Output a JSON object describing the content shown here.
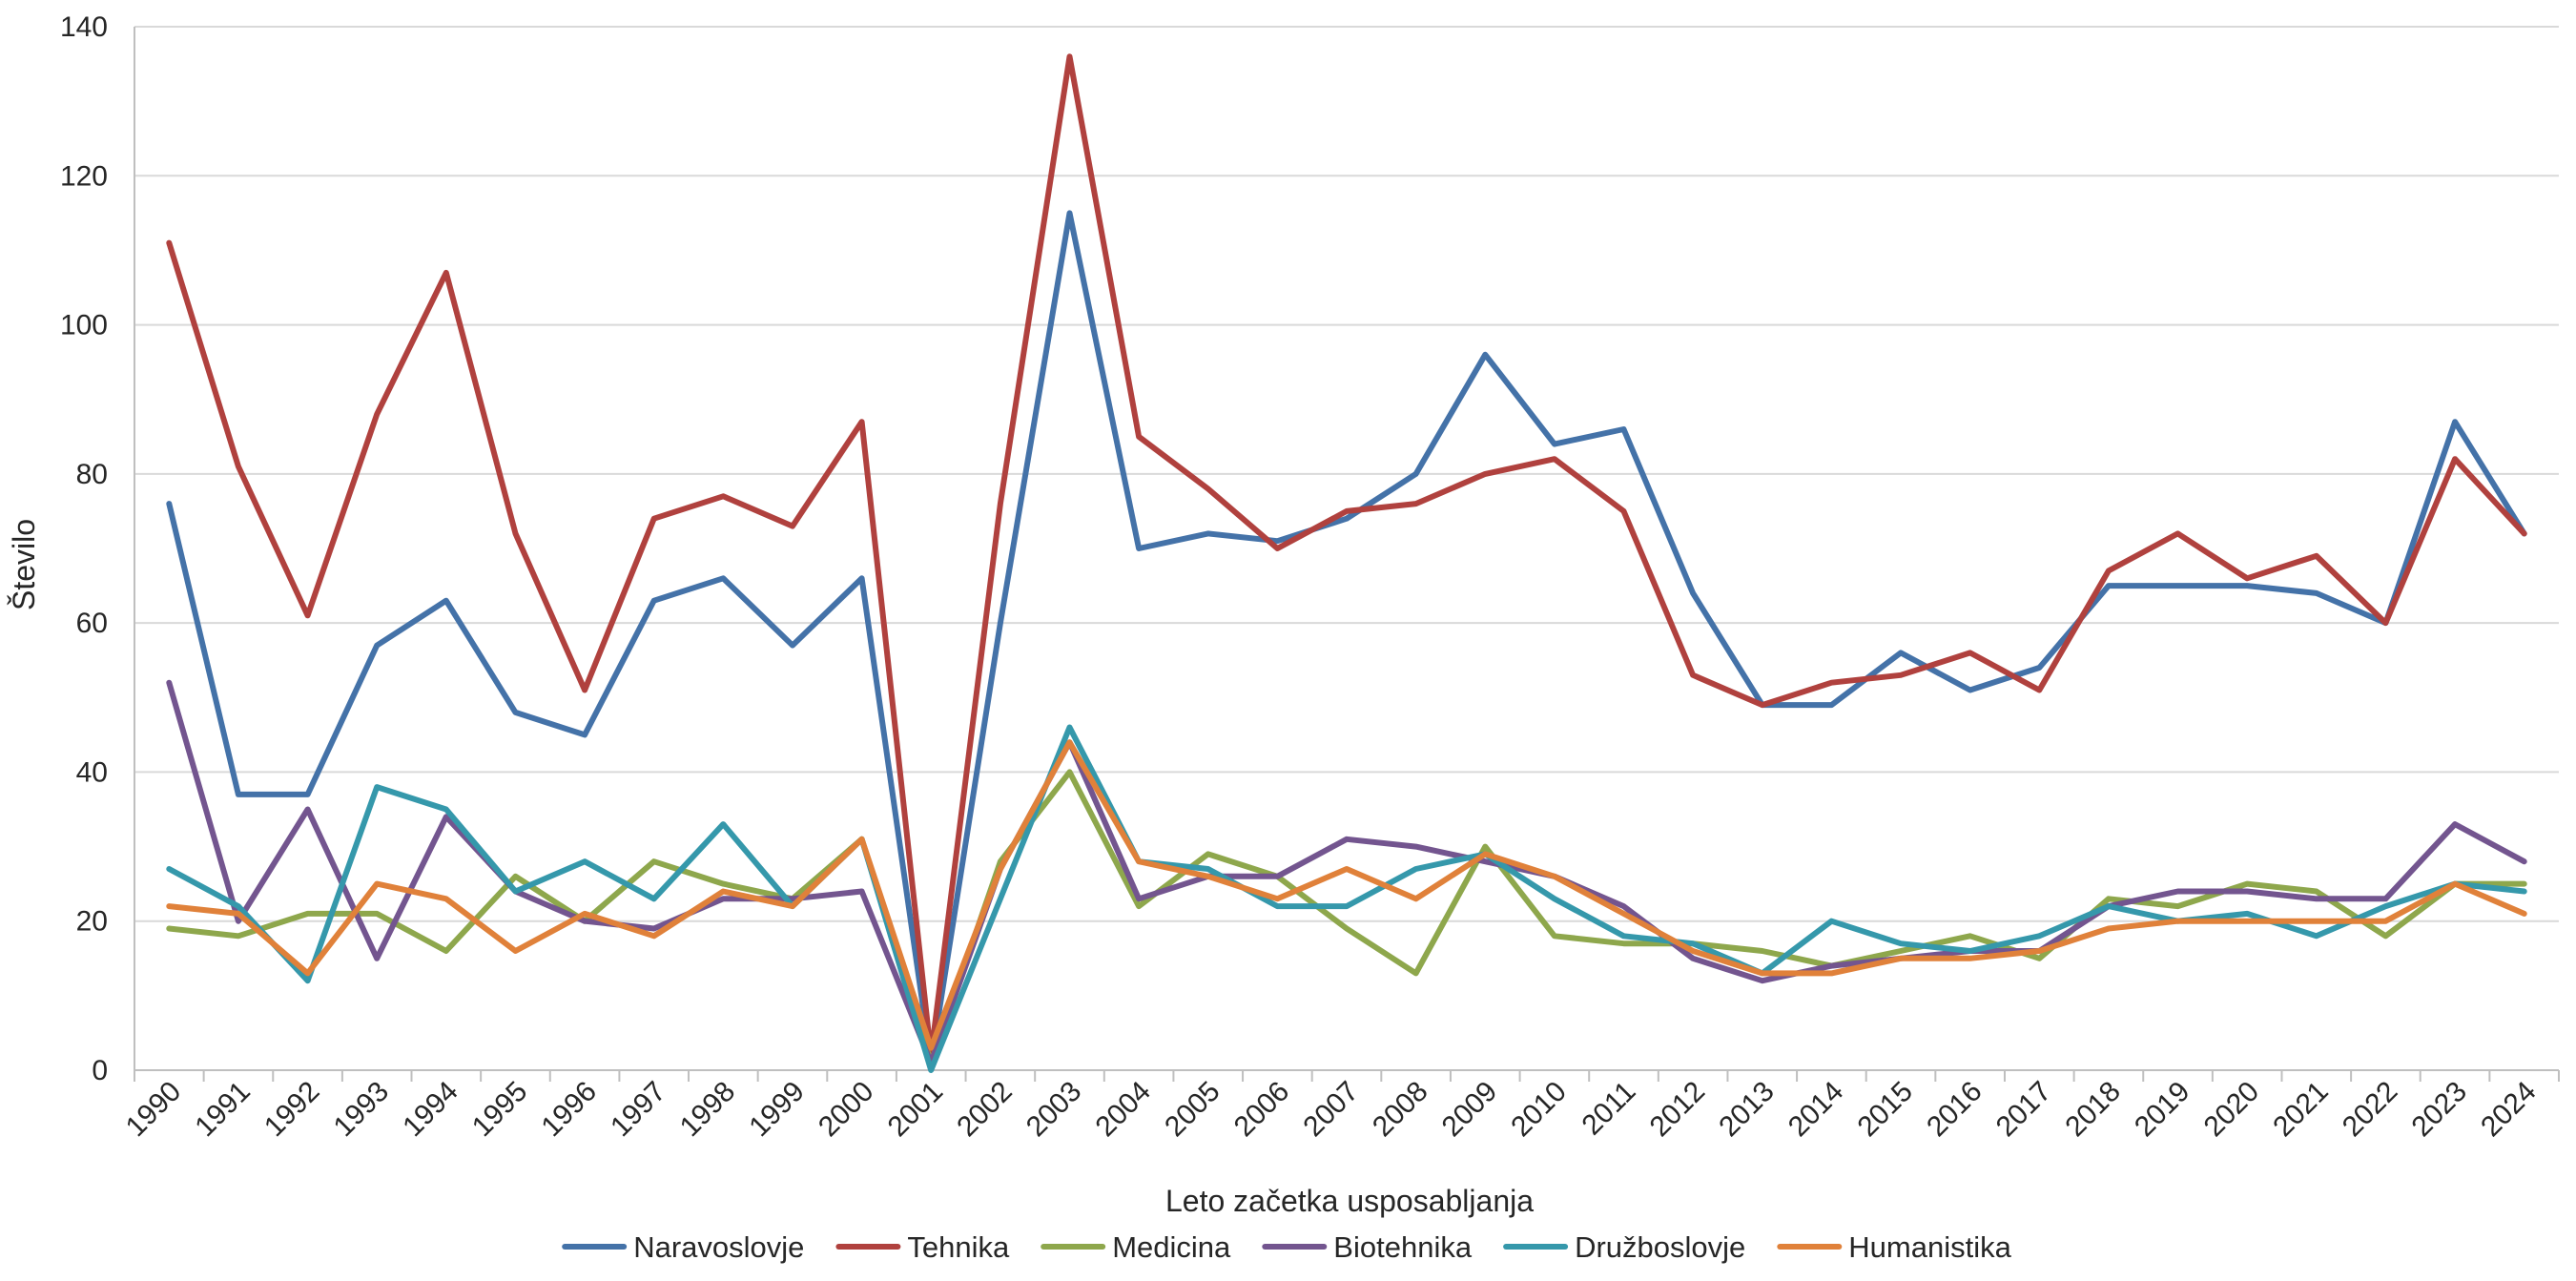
{
  "chart_data": {
    "type": "line",
    "xlabel": "Leto začetka usposabljanja",
    "ylabel": "Število",
    "ylim": [
      0,
      140
    ],
    "yticks": [
      0,
      20,
      40,
      60,
      80,
      100,
      120,
      140
    ],
    "grid": "horizontal",
    "legend_position": "bottom",
    "categories": [
      "1990",
      "1991",
      "1992",
      "1993",
      "1994",
      "1995",
      "1996",
      "1997",
      "1998",
      "1999",
      "2000",
      "2001",
      "2002",
      "2003",
      "2004",
      "2005",
      "2006",
      "2007",
      "2008",
      "2009",
      "2010",
      "2011",
      "2012",
      "2013",
      "2014",
      "2015",
      "2016",
      "2017",
      "2018",
      "2019",
      "2020",
      "2021",
      "2022",
      "2023",
      "2024"
    ],
    "series": [
      {
        "name": "Naravoslovje",
        "color": "#4472a8",
        "values": [
          76,
          37,
          37,
          57,
          63,
          48,
          45,
          63,
          66,
          57,
          66,
          1,
          60,
          115,
          70,
          72,
          71,
          74,
          80,
          96,
          84,
          86,
          64,
          49,
          49,
          56,
          51,
          54,
          65,
          65,
          65,
          64,
          60,
          87,
          72
        ]
      },
      {
        "name": "Tehnika",
        "color": "#b0413e",
        "values": [
          111,
          81,
          61,
          88,
          107,
          72,
          51,
          74,
          77,
          73,
          87,
          2,
          76,
          136,
          85,
          78,
          70,
          75,
          76,
          80,
          82,
          75,
          53,
          49,
          52,
          53,
          56,
          51,
          67,
          72,
          66,
          69,
          60,
          82,
          72
        ]
      },
      {
        "name": "Medicina",
        "color": "#8ea74c",
        "values": [
          19,
          18,
          21,
          21,
          16,
          26,
          20,
          28,
          25,
          23,
          31,
          1,
          28,
          40,
          22,
          29,
          26,
          19,
          13,
          30,
          18,
          17,
          17,
          16,
          14,
          16,
          18,
          15,
          23,
          22,
          25,
          24,
          18,
          25,
          25
        ]
      },
      {
        "name": "Biotehnika",
        "color": "#73558f",
        "values": [
          52,
          20,
          35,
          15,
          34,
          24,
          20,
          19,
          23,
          23,
          24,
          1,
          27,
          44,
          23,
          26,
          26,
          31,
          30,
          28,
          26,
          22,
          15,
          12,
          14,
          15,
          16,
          16,
          22,
          24,
          24,
          23,
          23,
          33,
          28
        ]
      },
      {
        "name": "Družboslovje",
        "color": "#3598ab",
        "values": [
          27,
          22,
          12,
          38,
          35,
          24,
          28,
          23,
          33,
          22,
          31,
          0,
          23,
          46,
          28,
          27,
          22,
          22,
          27,
          29,
          23,
          18,
          17,
          13,
          20,
          17,
          16,
          18,
          22,
          20,
          21,
          18,
          22,
          25,
          24
        ]
      },
      {
        "name": "Humanistika",
        "color": "#e0813a",
        "values": [
          22,
          21,
          13,
          25,
          23,
          16,
          21,
          18,
          24,
          22,
          31,
          3,
          27,
          44,
          28,
          26,
          23,
          27,
          23,
          29,
          26,
          21,
          16,
          13,
          13,
          15,
          15,
          16,
          19,
          20,
          20,
          20,
          20,
          25,
          21
        ]
      }
    ]
  }
}
